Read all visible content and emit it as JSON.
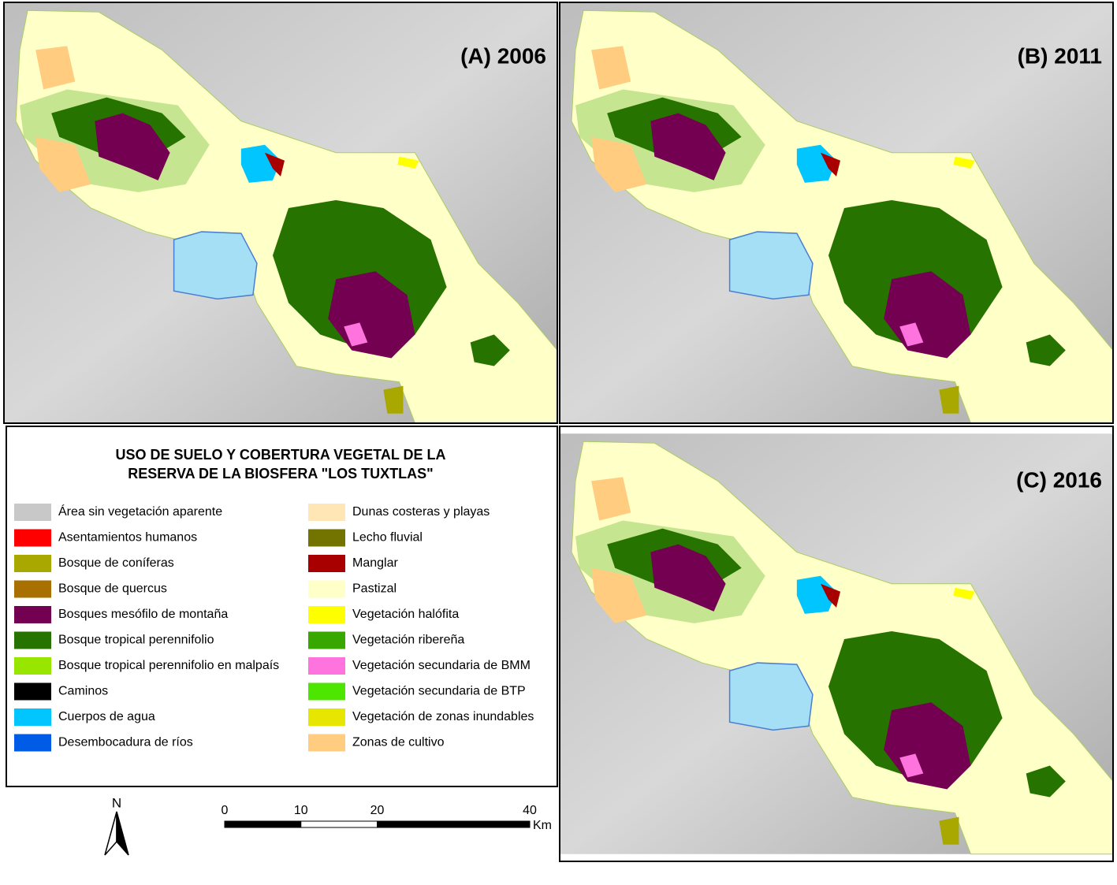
{
  "panels": [
    {
      "label": "(A) 2006"
    },
    {
      "label": "(B) 2011"
    },
    {
      "label": "(C) 2016"
    }
  ],
  "legend": {
    "title_lines": [
      "USO DE SUELO Y  COBERTURA VEGETAL DE LA",
      "RESERVA DE LA BIOSFERA \"LOS TUXTLAS\""
    ],
    "items": [
      {
        "label": "Área sin vegetación aparente",
        "color": "#c8c8c8"
      },
      {
        "label": "Asentamientos humanos",
        "color": "#ff0000"
      },
      {
        "label": "Bosque de coníferas",
        "color": "#a8a800"
      },
      {
        "label": "Bosque de quercus",
        "color": "#a87000"
      },
      {
        "label": "Bosques mesófilo de montaña",
        "color": "#730050"
      },
      {
        "label": "Bosque tropical perennifolio",
        "color": "#267300"
      },
      {
        "label": "Bosque tropical perennifolio en malpaís",
        "color": "#98e600"
      },
      {
        "label": "Caminos",
        "color": "#000000"
      },
      {
        "label": "Cuerpos de agua",
        "color": "#00c5ff"
      },
      {
        "label": "Desembocadura de ríos",
        "color": "#005ce6"
      },
      {
        "label": "Dunas costeras y playas",
        "color": "#ffe6b4"
      },
      {
        "label": "Lecho fluvial",
        "color": "#737300"
      },
      {
        "label": "Manglar",
        "color": "#a80000"
      },
      {
        "label": "Pastizal",
        "color": "#ffffc8"
      },
      {
        "label": "Vegetación halófita",
        "color": "#ffff00"
      },
      {
        "label": "Vegetación ribereña",
        "color": "#38a800"
      },
      {
        "label": "Vegetación secundaria de BMM",
        "color": "#ff73df"
      },
      {
        "label": "Vegetación secundaria de BTP",
        "color": "#4ce600"
      },
      {
        "label": "Vegetación de zonas inundables",
        "color": "#e6e600"
      },
      {
        "label": "Zonas de cultivo",
        "color": "#ffcc80"
      }
    ]
  },
  "north": "N",
  "scale": {
    "ticks": [
      0,
      10,
      20,
      40
    ],
    "unit": "Km"
  }
}
